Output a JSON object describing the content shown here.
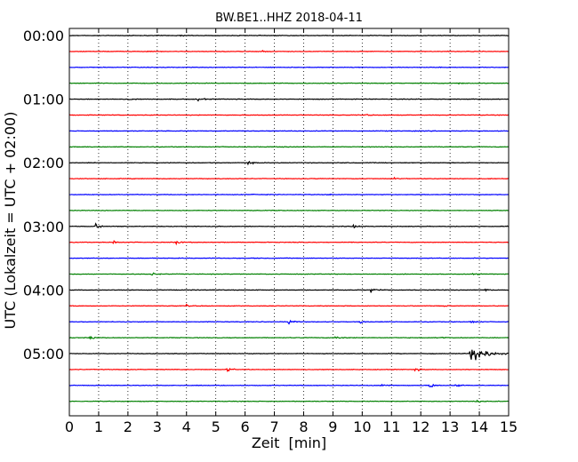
{
  "chart_data": {
    "type": "line",
    "title": "BW.BE1..HHZ 2018-04-11",
    "xlabel": "Zeit  [min]",
    "ylabel": "UTC (Lokalzeit = UTC + 02:00)",
    "xlim": [
      0,
      15
    ],
    "x_ticks": [
      "0",
      "1",
      "2",
      "3",
      "4",
      "5",
      "6",
      "7",
      "8",
      "9",
      "10",
      "11",
      "12",
      "13",
      "14",
      "15"
    ],
    "y_tick_labels": [
      "00:00",
      "01:00",
      "02:00",
      "03:00",
      "04:00",
      "05:00"
    ],
    "trace_interval_minutes": 15,
    "trace_count": 24,
    "trace_colors": [
      "#000000",
      "#ff0000",
      "#0000ff",
      "#008000"
    ],
    "grid": "vertical dotted",
    "events": [
      {
        "trace": 0,
        "x": 3.8,
        "amp": 0.12
      },
      {
        "trace": 1,
        "x": 6.6,
        "amp": 0.18
      },
      {
        "trace": 3,
        "x": 13.3,
        "amp": 0.12
      },
      {
        "trace": 4,
        "x": 2.0,
        "amp": 0.2
      },
      {
        "trace": 4,
        "x": 4.4,
        "amp": 0.35
      },
      {
        "trace": 5,
        "x": 10.1,
        "amp": 0.15
      },
      {
        "trace": 7,
        "x": 7.3,
        "amp": 0.12
      },
      {
        "trace": 8,
        "x": 6.1,
        "amp": 0.3
      },
      {
        "trace": 9,
        "x": 11.1,
        "amp": 0.12
      },
      {
        "trace": 10,
        "x": 6.2,
        "amp": 0.15
      },
      {
        "trace": 10,
        "x": 8.8,
        "amp": 0.15
      },
      {
        "trace": 12,
        "x": 0.9,
        "amp": 0.4
      },
      {
        "trace": 12,
        "x": 9.7,
        "amp": 0.4
      },
      {
        "trace": 13,
        "x": 1.5,
        "amp": 0.3
      },
      {
        "trace": 13,
        "x": 3.6,
        "amp": 0.5
      },
      {
        "trace": 15,
        "x": 2.8,
        "amp": 0.25
      },
      {
        "trace": 15,
        "x": 13.8,
        "amp": 0.2
      },
      {
        "trace": 16,
        "x": 10.3,
        "amp": 0.45
      },
      {
        "trace": 16,
        "x": 14.2,
        "amp": 0.2
      },
      {
        "trace": 17,
        "x": 4.0,
        "amp": 0.15
      },
      {
        "trace": 17,
        "x": 12.8,
        "amp": 0.15
      },
      {
        "trace": 18,
        "x": 7.5,
        "amp": 0.45
      },
      {
        "trace": 18,
        "x": 9.9,
        "amp": 0.3
      },
      {
        "trace": 18,
        "x": 13.7,
        "amp": 0.3
      },
      {
        "trace": 19,
        "x": 0.7,
        "amp": 0.4
      },
      {
        "trace": 19,
        "x": 9.1,
        "amp": 0.6
      },
      {
        "trace": 19,
        "x": 12.7,
        "amp": 0.2
      },
      {
        "trace": 20,
        "x": 13.7,
        "amp": 2.1
      },
      {
        "trace": 21,
        "x": 5.4,
        "amp": 0.35
      },
      {
        "trace": 21,
        "x": 11.8,
        "amp": 0.35
      },
      {
        "trace": 22,
        "x": 10.7,
        "amp": 0.45
      },
      {
        "trace": 22,
        "x": 12.3,
        "amp": 0.55
      },
      {
        "trace": 22,
        "x": 13.2,
        "amp": 0.35
      },
      {
        "trace": 23,
        "x": 13.9,
        "amp": 0.3
      }
    ]
  }
}
